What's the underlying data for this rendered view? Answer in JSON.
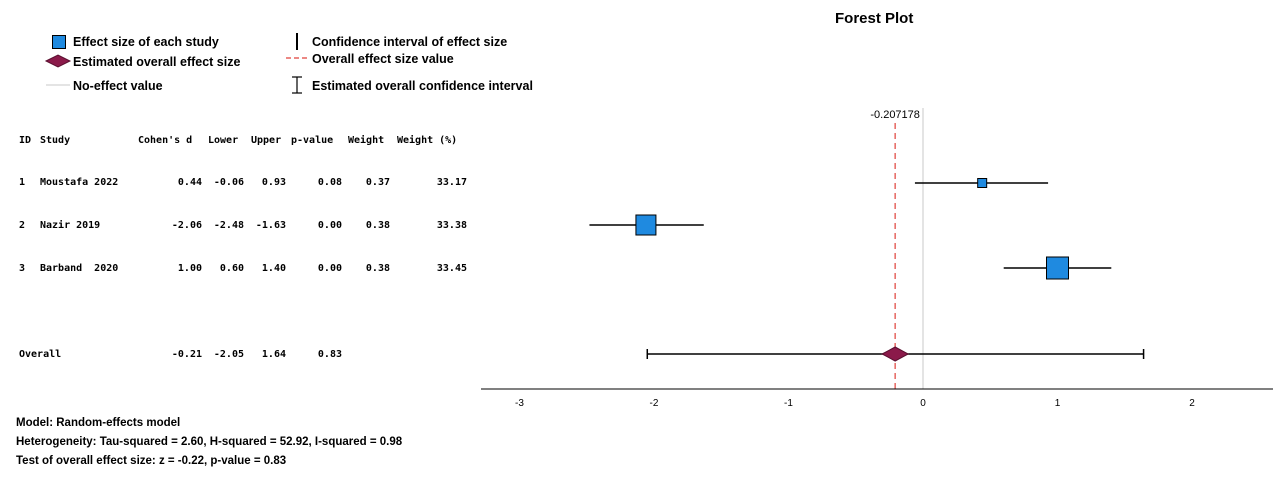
{
  "chart_data": {
    "type": "forest",
    "title": "Forest Plot",
    "legend": {
      "effect_size": "Effect size of each study",
      "overall_effect": "Estimated overall effect size",
      "no_effect": "No-effect value",
      "ci": "Confidence interval of effect size",
      "overall_value": "Overall effect size value",
      "overall_ci": "Estimated overall confidence interval"
    },
    "table_headers": [
      "ID",
      "Study",
      "Cohen's d",
      "Lower",
      "Upper",
      "p-value",
      "Weight",
      "Weight (%)"
    ],
    "studies": [
      {
        "id": "1",
        "study": "Moustafa 2022",
        "d": "0.44",
        "lower": "-0.06",
        "upper": "0.93",
        "p": "0.08",
        "weight": "0.37",
        "weight_pct": "33.17",
        "d_val": 0.44,
        "lower_val": -0.06,
        "upper_val": 0.93,
        "weight_pct_val": 33.17
      },
      {
        "id": "2",
        "study": "Nazir 2019",
        "d": "-2.06",
        "lower": "-2.48",
        "upper": "-1.63",
        "p": "0.00",
        "weight": "0.38",
        "weight_pct": "33.38",
        "d_val": -2.06,
        "lower_val": -2.48,
        "upper_val": -1.63,
        "weight_pct_val": 33.38
      },
      {
        "id": "3",
        "study": "Barband  2020",
        "d": "1.00",
        "lower": "0.60",
        "upper": "1.40",
        "p": "0.00",
        "weight": "0.38",
        "weight_pct": "33.45",
        "d_val": 1.0,
        "lower_val": 0.6,
        "upper_val": 1.4,
        "weight_pct_val": 33.45
      }
    ],
    "overall": {
      "label": "Overall",
      "d": "-0.21",
      "lower": "-2.05",
      "upper": "1.64",
      "p": "0.83",
      "d_val": -0.207178,
      "lower_val": -2.05,
      "upper_val": 1.64
    },
    "overall_value_label": "-0.207178",
    "no_effect_value": 0,
    "xlim": [
      -3.2,
      2.6
    ],
    "x_ticks": [
      -3,
      -2,
      -1,
      0,
      1,
      2
    ],
    "x_tick_labels": [
      "-3",
      "-2",
      "-1",
      "0",
      "1",
      "2"
    ],
    "colors": {
      "study_marker": "#1f8ae0",
      "overall_marker": "#8b1a4a",
      "overall_line": "#e0403a",
      "no_effect_line": "#c8c8c8",
      "ci_line": "#000000"
    }
  },
  "footer": {
    "model": "Model: Random-effects model",
    "heterogeneity": "Heterogeneity: Tau-squared = 2.60, H-squared = 52.92, I-squared = 0.98",
    "test": "Test of overall effect size: z = -0.22, p-value = 0.83"
  }
}
